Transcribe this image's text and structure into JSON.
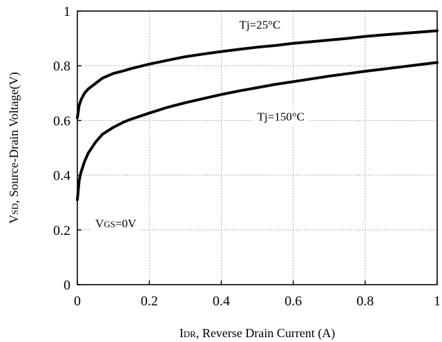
{
  "chart_data": {
    "type": "line",
    "title": "",
    "xlabel": {
      "main": "I",
      "sub": "DR",
      "rest": ", Reverse Drain Current (A)"
    },
    "ylabel": {
      "main": "V",
      "sub": "SD",
      "rest": ", Source-Drain Voltage(V)"
    },
    "xlim": [
      0,
      1
    ],
    "ylim": [
      0,
      1
    ],
    "xticks": [
      0,
      0.2,
      0.4,
      0.6,
      0.8,
      1
    ],
    "yticks": [
      0,
      0.2,
      0.4,
      0.6,
      0.8,
      1
    ],
    "xtick_labels": [
      "0",
      "0.2",
      "0.4",
      "0.6",
      "0.8",
      "1"
    ],
    "ytick_labels": [
      "0",
      "0.2",
      "0.4",
      "0.6",
      "0.8",
      "1"
    ],
    "grid": true,
    "series": [
      {
        "label": "Tj=25°C",
        "x": [
          0,
          0.005,
          0.01,
          0.02,
          0.03,
          0.05,
          0.07,
          0.1,
          0.13,
          0.15,
          0.2,
          0.25,
          0.3,
          0.35,
          0.4,
          0.45,
          0.5,
          0.55,
          0.6,
          0.65,
          0.7,
          0.75,
          0.8,
          0.85,
          0.9,
          0.95,
          1.0
        ],
        "y": [
          0.61,
          0.655,
          0.675,
          0.7,
          0.715,
          0.735,
          0.755,
          0.772,
          0.782,
          0.79,
          0.806,
          0.82,
          0.833,
          0.843,
          0.852,
          0.86,
          0.868,
          0.874,
          0.882,
          0.888,
          0.894,
          0.9,
          0.907,
          0.913,
          0.918,
          0.923,
          0.928
        ]
      },
      {
        "label": "Tj=150°C",
        "x": [
          0,
          0.005,
          0.01,
          0.02,
          0.03,
          0.05,
          0.07,
          0.1,
          0.13,
          0.15,
          0.2,
          0.25,
          0.3,
          0.35,
          0.4,
          0.45,
          0.5,
          0.55,
          0.6,
          0.65,
          0.7,
          0.75,
          0.8,
          0.85,
          0.9,
          0.95,
          1.0
        ],
        "y": [
          0.31,
          0.38,
          0.41,
          0.45,
          0.48,
          0.52,
          0.55,
          0.575,
          0.595,
          0.605,
          0.627,
          0.648,
          0.665,
          0.68,
          0.695,
          0.708,
          0.72,
          0.732,
          0.742,
          0.752,
          0.762,
          0.771,
          0.78,
          0.788,
          0.796,
          0.804,
          0.812
        ]
      }
    ],
    "annotations": [
      {
        "id": "t25",
        "text": "Tj=25°C",
        "x": 0.45,
        "y": 0.935
      },
      {
        "id": "t150",
        "text": "Tj=150°C",
        "x": 0.5,
        "y": 0.6
      },
      {
        "id": "vgs",
        "main": "V",
        "sub": "GS",
        "rest": "=0V",
        "x": 0.05,
        "y": 0.21
      }
    ]
  }
}
